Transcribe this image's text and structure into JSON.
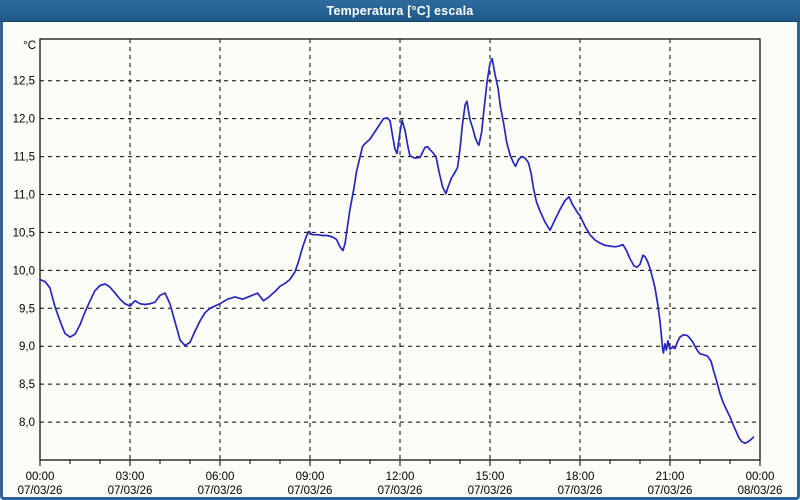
{
  "window": {
    "title": "Temperatura [°C] escala"
  },
  "colors": {
    "titlebar_bg": "#266192",
    "titlebar_text": "#ffffff",
    "window_border": "#2e6496",
    "plot_background": "#fcfdf6",
    "grid": "#000000",
    "line": "#2626c0"
  },
  "chart_data": {
    "type": "line",
    "title": "Temperatura [°C] escala",
    "ylabel": "°C",
    "grid": true,
    "legend": "none",
    "ylim": [
      7.5,
      13.05
    ],
    "xlim_hours": [
      0,
      24
    ],
    "minor_tick_interval_hours": 1,
    "y_ticks": [
      {
        "value": 8.0,
        "label": "8,0"
      },
      {
        "value": 8.5,
        "label": "8,5"
      },
      {
        "value": 9.0,
        "label": "9,0"
      },
      {
        "value": 9.5,
        "label": "9,5"
      },
      {
        "value": 10.0,
        "label": "10,0"
      },
      {
        "value": 10.5,
        "label": "10,5"
      },
      {
        "value": 11.0,
        "label": "11,0"
      },
      {
        "value": 11.5,
        "label": "11,5"
      },
      {
        "value": 12.0,
        "label": "12,0"
      },
      {
        "value": 12.5,
        "label": "12,5"
      }
    ],
    "x_ticks": [
      {
        "hour": 0,
        "time": "00:00",
        "date": "07/03/26"
      },
      {
        "hour": 3,
        "time": "03:00",
        "date": "07/03/26"
      },
      {
        "hour": 6,
        "time": "06:00",
        "date": "07/03/26"
      },
      {
        "hour": 9,
        "time": "09:00",
        "date": "07/03/26"
      },
      {
        "hour": 12,
        "time": "12:00",
        "date": "07/03/26"
      },
      {
        "hour": 15,
        "time": "15:00",
        "date": "07/03/26"
      },
      {
        "hour": 18,
        "time": "18:00",
        "date": "07/03/26"
      },
      {
        "hour": 21,
        "time": "21:00",
        "date": "07/03/26"
      },
      {
        "hour": 24,
        "time": "00:00",
        "date": "08/03/26"
      }
    ],
    "series": [
      {
        "name": "Temperatura",
        "color": "#2626c0",
        "points": [
          [
            0.0,
            9.88
          ],
          [
            0.17,
            9.85
          ],
          [
            0.33,
            9.77
          ],
          [
            0.5,
            9.52
          ],
          [
            0.67,
            9.33
          ],
          [
            0.83,
            9.17
          ],
          [
            1.0,
            9.12
          ],
          [
            1.17,
            9.16
          ],
          [
            1.33,
            9.28
          ],
          [
            1.5,
            9.45
          ],
          [
            1.67,
            9.6
          ],
          [
            1.83,
            9.73
          ],
          [
            2.0,
            9.8
          ],
          [
            2.17,
            9.82
          ],
          [
            2.33,
            9.78
          ],
          [
            2.5,
            9.7
          ],
          [
            2.67,
            9.62
          ],
          [
            2.83,
            9.56
          ],
          [
            3.0,
            9.53
          ],
          [
            3.17,
            9.6
          ],
          [
            3.33,
            9.56
          ],
          [
            3.5,
            9.55
          ],
          [
            3.67,
            9.56
          ],
          [
            3.83,
            9.58
          ],
          [
            4.0,
            9.67
          ],
          [
            4.17,
            9.7
          ],
          [
            4.33,
            9.56
          ],
          [
            4.5,
            9.32
          ],
          [
            4.67,
            9.08
          ],
          [
            4.83,
            9.01
          ],
          [
            5.0,
            9.05
          ],
          [
            5.17,
            9.2
          ],
          [
            5.33,
            9.33
          ],
          [
            5.5,
            9.44
          ],
          [
            5.67,
            9.5
          ],
          [
            5.83,
            9.53
          ],
          [
            6.0,
            9.56
          ],
          [
            6.25,
            9.62
          ],
          [
            6.5,
            9.65
          ],
          [
            6.75,
            9.62
          ],
          [
            7.0,
            9.66
          ],
          [
            7.25,
            9.7
          ],
          [
            7.45,
            9.6
          ],
          [
            7.6,
            9.64
          ],
          [
            7.83,
            9.72
          ],
          [
            8.0,
            9.79
          ],
          [
            8.17,
            9.83
          ],
          [
            8.33,
            9.88
          ],
          [
            8.5,
            9.98
          ],
          [
            8.62,
            10.12
          ],
          [
            8.75,
            10.3
          ],
          [
            8.88,
            10.45
          ],
          [
            8.95,
            10.51
          ],
          [
            9.08,
            10.47
          ],
          [
            9.25,
            10.47
          ],
          [
            9.42,
            10.46
          ],
          [
            9.58,
            10.46
          ],
          [
            9.75,
            10.44
          ],
          [
            9.88,
            10.41
          ],
          [
            10.0,
            10.31
          ],
          [
            10.1,
            10.26
          ],
          [
            10.17,
            10.36
          ],
          [
            10.25,
            10.58
          ],
          [
            10.33,
            10.8
          ],
          [
            10.45,
            11.05
          ],
          [
            10.55,
            11.3
          ],
          [
            10.67,
            11.5
          ],
          [
            10.75,
            11.63
          ],
          [
            10.83,
            11.67
          ],
          [
            11.0,
            11.73
          ],
          [
            11.17,
            11.83
          ],
          [
            11.33,
            11.93
          ],
          [
            11.45,
            12.0
          ],
          [
            11.58,
            12.01
          ],
          [
            11.67,
            11.97
          ],
          [
            11.75,
            11.78
          ],
          [
            11.83,
            11.6
          ],
          [
            11.9,
            11.54
          ],
          [
            12.0,
            11.82
          ],
          [
            12.07,
            11.98
          ],
          [
            12.17,
            11.84
          ],
          [
            12.25,
            11.66
          ],
          [
            12.33,
            11.51
          ],
          [
            12.5,
            11.48
          ],
          [
            12.67,
            11.49
          ],
          [
            12.83,
            11.62
          ],
          [
            12.92,
            11.63
          ],
          [
            13.0,
            11.59
          ],
          [
            13.1,
            11.55
          ],
          [
            13.2,
            11.5
          ],
          [
            13.3,
            11.3
          ],
          [
            13.42,
            11.1
          ],
          [
            13.53,
            11.01
          ],
          [
            13.62,
            11.12
          ],
          [
            13.72,
            11.22
          ],
          [
            13.83,
            11.29
          ],
          [
            13.92,
            11.36
          ],
          [
            14.0,
            11.6
          ],
          [
            14.08,
            11.92
          ],
          [
            14.17,
            12.18
          ],
          [
            14.23,
            12.23
          ],
          [
            14.33,
            11.99
          ],
          [
            14.42,
            11.88
          ],
          [
            14.5,
            11.76
          ],
          [
            14.58,
            11.68
          ],
          [
            14.63,
            11.65
          ],
          [
            14.72,
            11.82
          ],
          [
            14.8,
            12.12
          ],
          [
            14.9,
            12.48
          ],
          [
            15.0,
            12.73
          ],
          [
            15.07,
            12.79
          ],
          [
            15.17,
            12.58
          ],
          [
            15.27,
            12.4
          ],
          [
            15.35,
            12.15
          ],
          [
            15.45,
            11.95
          ],
          [
            15.55,
            11.7
          ],
          [
            15.67,
            11.52
          ],
          [
            15.78,
            11.42
          ],
          [
            15.85,
            11.37
          ],
          [
            15.95,
            11.46
          ],
          [
            16.05,
            11.5
          ],
          [
            16.17,
            11.48
          ],
          [
            16.28,
            11.42
          ],
          [
            16.37,
            11.28
          ],
          [
            16.45,
            11.08
          ],
          [
            16.55,
            10.9
          ],
          [
            16.67,
            10.78
          ],
          [
            16.83,
            10.64
          ],
          [
            17.0,
            10.53
          ],
          [
            17.17,
            10.67
          ],
          [
            17.33,
            10.8
          ],
          [
            17.5,
            10.92
          ],
          [
            17.63,
            10.97
          ],
          [
            17.75,
            10.87
          ],
          [
            17.92,
            10.76
          ],
          [
            18.0,
            10.72
          ],
          [
            18.17,
            10.58
          ],
          [
            18.33,
            10.47
          ],
          [
            18.5,
            10.4
          ],
          [
            18.67,
            10.36
          ],
          [
            18.83,
            10.33
          ],
          [
            19.0,
            10.32
          ],
          [
            19.17,
            10.31
          ],
          [
            19.3,
            10.32
          ],
          [
            19.43,
            10.34
          ],
          [
            19.55,
            10.26
          ],
          [
            19.67,
            10.15
          ],
          [
            19.8,
            10.06
          ],
          [
            19.9,
            10.04
          ],
          [
            20.0,
            10.08
          ],
          [
            20.1,
            10.2
          ],
          [
            20.17,
            10.18
          ],
          [
            20.25,
            10.12
          ],
          [
            20.33,
            10.03
          ],
          [
            20.42,
            9.9
          ],
          [
            20.5,
            9.77
          ],
          [
            20.58,
            9.58
          ],
          [
            20.67,
            9.32
          ],
          [
            20.75,
            8.98
          ],
          [
            20.78,
            8.91
          ],
          [
            20.83,
            9.03
          ],
          [
            20.88,
            8.95
          ],
          [
            20.93,
            9.07
          ],
          [
            21.0,
            8.96
          ],
          [
            21.08,
            8.99
          ],
          [
            21.17,
            8.97
          ],
          [
            21.25,
            9.06
          ],
          [
            21.33,
            9.12
          ],
          [
            21.45,
            9.15
          ],
          [
            21.58,
            9.14
          ],
          [
            21.67,
            9.1
          ],
          [
            21.75,
            9.06
          ],
          [
            21.83,
            9.0
          ],
          [
            21.92,
            8.94
          ],
          [
            22.0,
            8.9
          ],
          [
            22.1,
            8.89
          ],
          [
            22.25,
            8.87
          ],
          [
            22.37,
            8.8
          ],
          [
            22.45,
            8.68
          ],
          [
            22.55,
            8.55
          ],
          [
            22.67,
            8.37
          ],
          [
            22.78,
            8.25
          ],
          [
            22.9,
            8.15
          ],
          [
            23.0,
            8.07
          ],
          [
            23.1,
            7.97
          ],
          [
            23.2,
            7.88
          ],
          [
            23.3,
            7.79
          ],
          [
            23.4,
            7.74
          ],
          [
            23.5,
            7.72
          ],
          [
            23.6,
            7.74
          ],
          [
            23.7,
            7.77
          ],
          [
            23.78,
            7.8
          ]
        ]
      }
    ]
  }
}
